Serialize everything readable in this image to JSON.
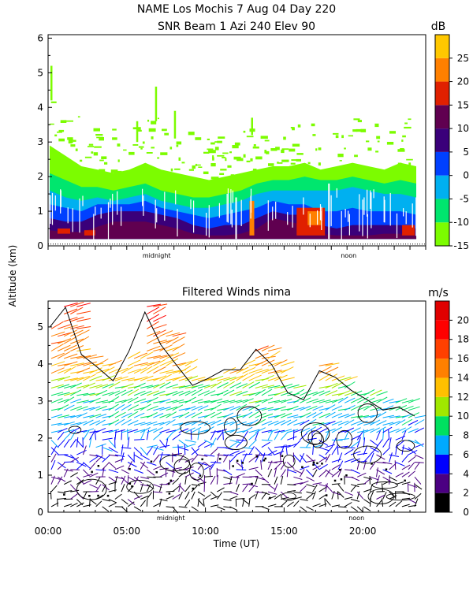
{
  "chart_data": [
    {
      "type": "heatmap",
      "title_line1": "NAME Los Mochis    7 Aug 04 Day 220",
      "title_line2": "SNR Beam 1 Azi 240 Elev 90",
      "ylabel": "Altitude (km)",
      "ylim": [
        0,
        6.1
      ],
      "yticks": [
        0,
        1,
        2,
        3,
        4,
        5,
        6
      ],
      "xlim": [
        0,
        24
      ],
      "xmarkers": [
        {
          "label": "midnight",
          "x": 6.9
        },
        {
          "label": "noon",
          "x": 19.1
        }
      ],
      "colorbar": {
        "unit": "dB",
        "ticks": [
          -15,
          -10,
          -5,
          0,
          5,
          10,
          15,
          20,
          25
        ],
        "bands": [
          {
            "from": -15,
            "to": -10,
            "color": "#7cfc00"
          },
          {
            "from": -10,
            "to": -5,
            "color": "#00e66e"
          },
          {
            "from": -5,
            "to": 0,
            "color": "#00b0f0"
          },
          {
            "from": 0,
            "to": 5,
            "color": "#0040ff"
          },
          {
            "from": 5,
            "to": 10,
            "color": "#3a007a"
          },
          {
            "from": 10,
            "to": 15,
            "color": "#600050"
          },
          {
            "from": 15,
            "to": 20,
            "color": "#e02000"
          },
          {
            "from": 20,
            "to": 25,
            "color": "#ff8000"
          },
          {
            "from": 25,
            "to": 30,
            "color": "#ffc800"
          }
        ]
      },
      "layers": [
        {
          "name": "weak-echo",
          "color": "#7cfc00",
          "height_km": [
            2.9,
            2.6,
            2.3,
            2.2,
            2.1,
            2.2,
            2.4,
            2.2,
            2.1,
            2.0,
            1.9,
            2.0,
            2.1,
            2.2,
            2.3,
            2.3,
            2.4,
            2.2,
            2.3,
            2.4,
            2.3,
            2.2,
            2.4,
            2.3
          ]
        },
        {
          "name": "moderate-echo",
          "color": "#00e66e",
          "height_km": [
            2.1,
            1.9,
            1.7,
            1.7,
            1.6,
            1.7,
            1.8,
            1.6,
            1.5,
            1.4,
            1.4,
            1.5,
            1.6,
            1.8,
            1.9,
            1.9,
            2.0,
            1.9,
            1.9,
            2.0,
            1.9,
            1.8,
            1.9,
            1.8
          ]
        },
        {
          "name": "cyan-echo",
          "color": "#00b0f0",
          "height_km": [
            1.6,
            1.4,
            1.3,
            1.4,
            1.3,
            1.4,
            1.5,
            1.3,
            1.2,
            1.1,
            1.1,
            1.2,
            1.3,
            1.5,
            1.6,
            1.6,
            1.6,
            1.6,
            1.6,
            1.7,
            1.6,
            1.5,
            1.5,
            1.4
          ]
        },
        {
          "name": "blue-echo",
          "color": "#0040ff",
          "height_km": [
            1.2,
            1.1,
            1.0,
            1.2,
            1.2,
            1.2,
            1.3,
            1.1,
            1.0,
            0.9,
            0.8,
            0.9,
            1.0,
            1.1,
            1.3,
            1.2,
            1.2,
            1.0,
            1.0,
            1.1,
            1.0,
            1.0,
            1.0,
            0.9
          ]
        },
        {
          "name": "strong-echo",
          "color": "#3a007a",
          "height_km": [
            0.8,
            0.7,
            0.7,
            0.9,
            1.0,
            1.0,
            1.0,
            0.9,
            0.8,
            0.6,
            0.5,
            0.6,
            0.6,
            0.8,
            1.0,
            0.9,
            0.9,
            0.6,
            0.5,
            0.6,
            0.6,
            0.6,
            0.6,
            0.5
          ]
        },
        {
          "name": "very-strong-echo",
          "color": "#600050",
          "height_km": [
            0.45,
            0.4,
            0.4,
            0.55,
            0.7,
            0.7,
            0.7,
            0.6,
            0.5,
            0.35,
            0.3,
            0.3,
            0.35,
            0.5,
            0.8,
            0.7,
            0.6,
            0.35,
            0.3,
            0.3,
            0.3,
            0.35,
            0.35,
            0.3
          ]
        }
      ],
      "hotspots": [
        {
          "color": "#e02000",
          "x": 0.6,
          "y": 0.35,
          "w": 0.8,
          "h": 0.15
        },
        {
          "color": "#e02000",
          "x": 2.3,
          "y": 0.3,
          "w": 0.7,
          "h": 0.15
        },
        {
          "color": "#e02000",
          "x": 15.8,
          "y": 0.3,
          "w": 1.8,
          "h": 0.8
        },
        {
          "color": "#ff8000",
          "x": 16.5,
          "y": 0.6,
          "w": 0.9,
          "h": 0.4
        },
        {
          "color": "#e02000",
          "x": 22.5,
          "y": 0.3,
          "w": 0.8,
          "h": 0.3
        },
        {
          "color": "#ff8000",
          "x": 12.8,
          "y": 0.3,
          "w": 0.3,
          "h": 1.0
        }
      ]
    },
    {
      "type": "scatter",
      "title": "Filtered Winds nima",
      "xlabel": "Time (UT)",
      "xticklabels": [
        "00:00",
        "05:00",
        "10:00",
        "15:00",
        "20:00"
      ],
      "xticks": [
        0,
        5,
        10,
        15,
        20
      ],
      "xlim": [
        0,
        24
      ],
      "ylim": [
        0,
        5.7
      ],
      "yticks": [
        0,
        1,
        2,
        3,
        4,
        5
      ],
      "xmarkers": [
        {
          "label": "midnight",
          "x": 7.8
        },
        {
          "label": "noon",
          "x": 19.6
        }
      ],
      "data_top_km": [
        5.0,
        5.6,
        4.2,
        4.0,
        3.8,
        4.3,
        5.6,
        4.8,
        4.1,
        3.6,
        3.6,
        3.8,
        4.1,
        4.4,
        4.0,
        3.5,
        3.2,
        4.0,
        3.7,
        3.2,
        3.3,
        3.0,
        3.1,
        2.7
      ],
      "colorbar": {
        "unit": "m/s",
        "ticks": [
          0,
          2,
          4,
          6,
          8,
          10,
          12,
          14,
          16,
          18,
          20
        ],
        "bands": [
          {
            "from": 0,
            "to": 2,
            "color": "#000000"
          },
          {
            "from": 2,
            "to": 4,
            "color": "#4b0082"
          },
          {
            "from": 4,
            "to": 6,
            "color": "#0000ff"
          },
          {
            "from": 6,
            "to": 8,
            "color": "#00aaff"
          },
          {
            "from": 8,
            "to": 10,
            "color": "#00e060"
          },
          {
            "from": 10,
            "to": 12,
            "color": "#a0e800"
          },
          {
            "from": 12,
            "to": 14,
            "color": "#ffc000"
          },
          {
            "from": 14,
            "to": 16,
            "color": "#ff8000"
          },
          {
            "from": 16,
            "to": 18,
            "color": "#ff4000"
          },
          {
            "from": 18,
            "to": 20,
            "color": "#ff0000"
          },
          {
            "from": 20,
            "to": 22,
            "color": "#e00000"
          }
        ]
      }
    }
  ]
}
